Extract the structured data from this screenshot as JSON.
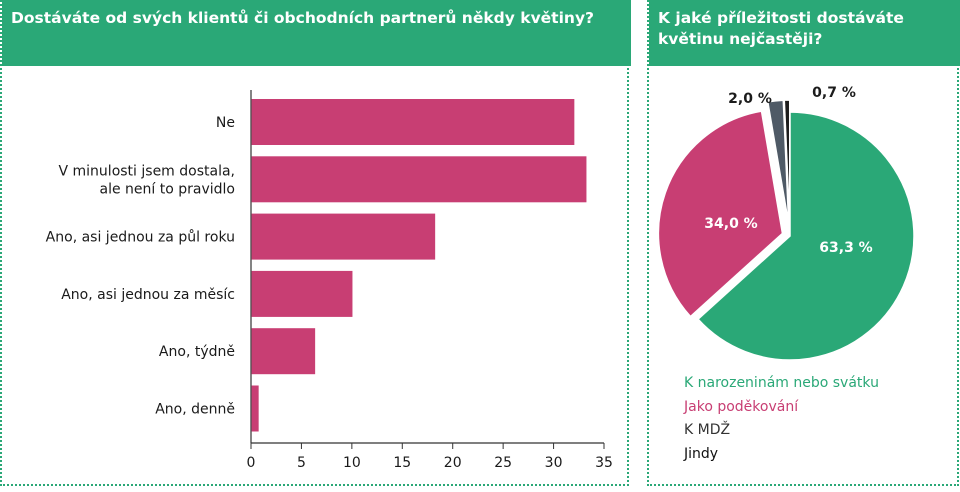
{
  "colors": {
    "green": "#2aa877",
    "magenta": "#c83e73",
    "slate": "#4f5a66",
    "black": "#1c1c1c"
  },
  "left_panel": {
    "title": "Dostáváte od svých klientů či obchodních partnerů někdy květiny?"
  },
  "right_panel": {
    "title": "K jaké příležitosti dostáváte květinu nejčastěji?"
  },
  "chart_data": [
    {
      "type": "bar",
      "orientation": "horizontal",
      "title": "Dostáváte od svých klientů či obchodních partnerů někdy květiny?",
      "categories": [
        [
          "Ne"
        ],
        [
          "V minulosti jsem dostala,",
          "ale není to pravidlo"
        ],
        [
          "Ano, asi jednou za půl roku"
        ],
        [
          "Ano, asi jednou za měsíc"
        ],
        [
          "Ano, týdně"
        ],
        [
          "Ano, denně"
        ]
      ],
      "values": [
        32,
        33.2,
        18.2,
        10,
        6.3,
        0.7
      ],
      "xlim": [
        0,
        35
      ],
      "xticks": [
        "0",
        "5",
        "10",
        "15",
        "20",
        "25",
        "30",
        "35"
      ],
      "color": "#c83e73",
      "grid": false
    },
    {
      "type": "pie",
      "title": "K jaké příležitosti dostáváte květinu nejčastěji?",
      "slices": [
        {
          "name": "K narozeninám nebo svátku",
          "value": 63.3,
          "label": "63,3 %",
          "color": "#2aa877"
        },
        {
          "name": "Jako poděkování",
          "value": 34.0,
          "label": "34,0 %",
          "color": "#c83e73"
        },
        {
          "name": "K MDŽ",
          "value": 2.0,
          "label": "2,0 %",
          "color": "#4f5a66"
        },
        {
          "name": "Jindy",
          "value": 0.7,
          "label": "0,7 %",
          "color": "#1c1c1c"
        }
      ],
      "legend_position": "bottom"
    }
  ]
}
